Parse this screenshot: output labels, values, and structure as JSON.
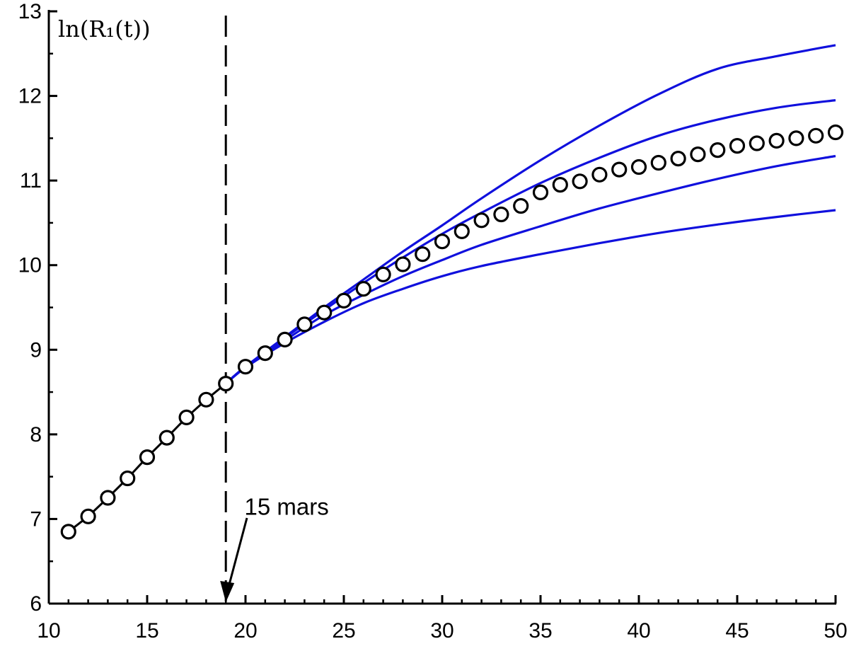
{
  "chart_data": {
    "type": "line",
    "title": "",
    "xlabel": "",
    "ylabel": "ln(R₁(t))",
    "xlim": [
      10,
      50
    ],
    "ylim": [
      6,
      13
    ],
    "grid": false,
    "x_ticks": [
      10,
      15,
      20,
      25,
      30,
      35,
      40,
      45,
      50
    ],
    "y_ticks": [
      6,
      7,
      8,
      9,
      10,
      11,
      12,
      13
    ],
    "vline": {
      "x": 19
    },
    "annotation": {
      "text": "15 mars",
      "x": 19,
      "y": 6,
      "text_x": 20.2,
      "text_y": 7.15
    },
    "colors": {
      "model": "#1010dd",
      "data": "#000000",
      "marker_fill": "#ffffff"
    },
    "data_series": {
      "x": [
        11,
        12,
        13,
        14,
        15,
        16,
        17,
        18,
        19,
        20,
        21,
        22,
        23,
        24,
        25,
        26,
        27,
        28,
        29,
        30,
        31,
        32,
        33,
        34,
        35,
        36,
        37,
        38,
        39,
        40,
        41,
        42,
        43,
        44,
        45,
        46,
        47,
        48,
        49,
        50
      ],
      "y": [
        6.85,
        7.03,
        7.25,
        7.48,
        7.73,
        7.96,
        8.2,
        8.41,
        8.6,
        8.8,
        8.96,
        9.12,
        9.3,
        9.44,
        9.58,
        9.72,
        9.89,
        10.01,
        10.13,
        10.28,
        10.4,
        10.53,
        10.6,
        10.7,
        10.86,
        10.95,
        10.99,
        11.07,
        11.13,
        11.16,
        11.21,
        11.26,
        11.31,
        11.36,
        11.41,
        11.44,
        11.47,
        11.5,
        11.53,
        11.57
      ],
      "line_until_x": 19
    },
    "series": [
      {
        "x": [
          19,
          20,
          22,
          24,
          26,
          28,
          30,
          32,
          35,
          38,
          41,
          44,
          47,
          50
        ],
        "y": [
          8.6,
          8.8,
          9.15,
          9.5,
          9.83,
          10.16,
          10.47,
          10.79,
          11.24,
          11.65,
          12.02,
          12.32,
          12.47,
          12.6
        ]
      },
      {
        "x": [
          19,
          20,
          22,
          24,
          26,
          28,
          30,
          32,
          35,
          38,
          41,
          44,
          47,
          50
        ],
        "y": [
          8.6,
          8.8,
          9.14,
          9.47,
          9.79,
          10.09,
          10.37,
          10.62,
          10.97,
          11.27,
          11.53,
          11.72,
          11.86,
          11.95
        ]
      },
      {
        "x": [
          19,
          20,
          22,
          24,
          26,
          28,
          30,
          32,
          35,
          38,
          41,
          44,
          47,
          50
        ],
        "y": [
          8.6,
          8.8,
          9.11,
          9.41,
          9.65,
          9.87,
          10.06,
          10.24,
          10.46,
          10.67,
          10.85,
          11.02,
          11.17,
          11.29
        ]
      },
      {
        "x": [
          19,
          20,
          22,
          24,
          26,
          28,
          30,
          32,
          35,
          38,
          41,
          44,
          47,
          50
        ],
        "y": [
          8.6,
          8.79,
          9.08,
          9.33,
          9.55,
          9.72,
          9.87,
          9.99,
          10.13,
          10.26,
          10.38,
          10.48,
          10.57,
          10.65
        ]
      }
    ]
  }
}
